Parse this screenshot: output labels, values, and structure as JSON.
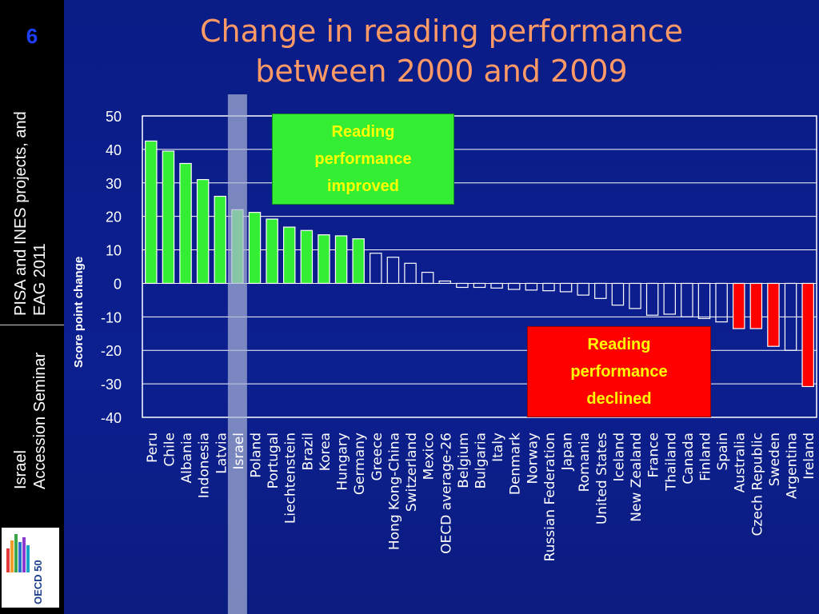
{
  "slide_number": "6",
  "title": [
    "Change in reading performance",
    "between 2000 and 2009"
  ],
  "sidebar": {
    "top_lines": [
      "PISA and INES projects, and",
      "EAG 2011"
    ],
    "bottom_lines": [
      "Israel",
      "Accession Seminar"
    ]
  },
  "logo": {
    "name": "oecd-50-logo",
    "text": "OECD 50"
  },
  "callouts": {
    "improved": [
      "Reading",
      "performance",
      "improved"
    ],
    "declined": [
      "Reading",
      "performance",
      "declined"
    ]
  },
  "colors": {
    "improved": "#33ee33",
    "declined": "#ff0000",
    "neutral_outline": "#ffffff",
    "highlight": "#aab3d6",
    "title": "#ff9966"
  },
  "chart_data": {
    "type": "bar",
    "title": "Change in reading performance between 2000 and 2009",
    "ylabel": "Score point change",
    "ylim": [
      -40,
      50
    ],
    "yticks": [
      50,
      40,
      30,
      20,
      10,
      0,
      -10,
      -20,
      -30,
      -40
    ],
    "grid": true,
    "highlighted_category": "Israel",
    "categories": [
      "Peru",
      "Chile",
      "Albania",
      "Indonesia",
      "Latvia",
      "Israel",
      "Poland",
      "Portugal",
      "Liechtenstein",
      "Brazil",
      "Korea",
      "Hungary",
      "Germany",
      "Greece",
      "Hong Kong-China",
      "Switzerland",
      "Mexico",
      "OECD average-26",
      "Belgium",
      "Bulgaria",
      "Italy",
      "Denmark",
      "Norway",
      "Russian Federation",
      "Japan",
      "Romania",
      "United States",
      "Iceland",
      "New Zealand",
      "France",
      "Thailand",
      "Canada",
      "Finland",
      "Spain",
      "Australia",
      "Czech Republic",
      "Sweden",
      "Argentina",
      "Ireland"
    ],
    "values": [
      42.5,
      39.5,
      35.8,
      31,
      26,
      22,
      21.2,
      19.2,
      16.8,
      15.8,
      14.5,
      14.2,
      13.3,
      9,
      7.8,
      6,
      3.3,
      0.7,
      -1.2,
      -1.2,
      -1.4,
      -1.8,
      -2,
      -2.2,
      -2.5,
      -3.5,
      -4.5,
      -6.5,
      -7.5,
      -9.5,
      -9.2,
      -10,
      -10.5,
      -11.5,
      -13.5,
      -13.5,
      -18.8,
      -20,
      -30.8
    ],
    "status": [
      "improved",
      "improved",
      "improved",
      "improved",
      "improved",
      "improved",
      "improved",
      "improved",
      "improved",
      "improved",
      "improved",
      "improved",
      "improved",
      "neutral",
      "neutral",
      "neutral",
      "neutral",
      "neutral",
      "neutral",
      "neutral",
      "neutral",
      "neutral",
      "neutral",
      "neutral",
      "neutral",
      "neutral",
      "neutral",
      "neutral",
      "neutral",
      "neutral",
      "neutral",
      "neutral",
      "neutral",
      "neutral",
      "declined",
      "declined",
      "declined",
      "neutral",
      "declined"
    ]
  }
}
